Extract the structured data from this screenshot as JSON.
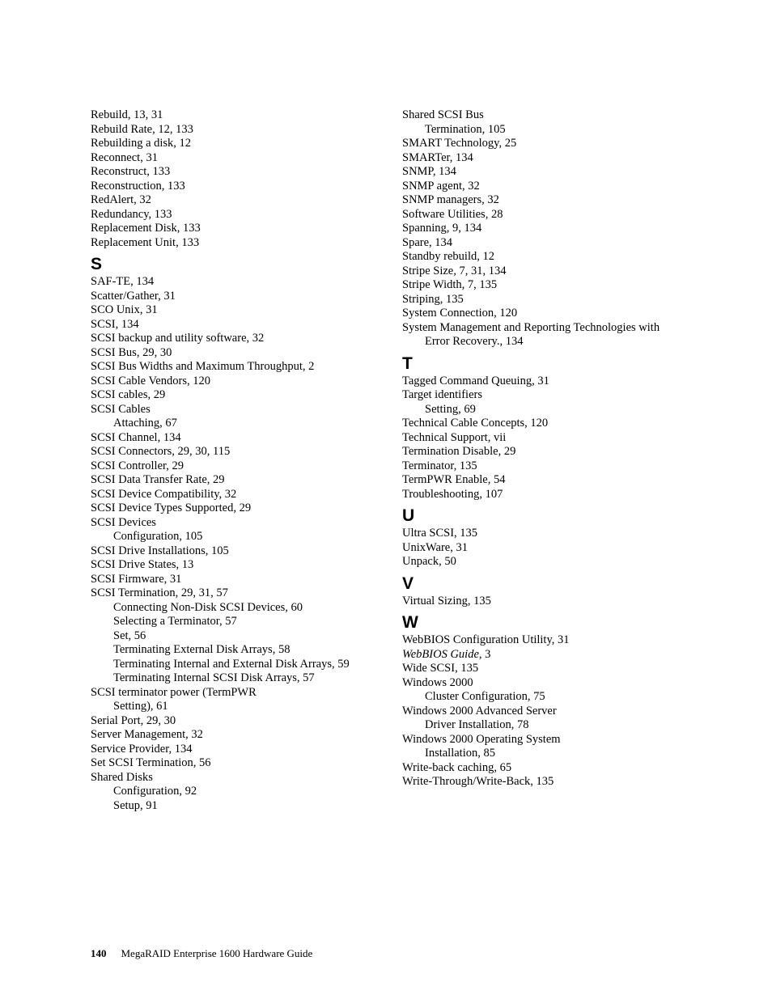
{
  "footer": {
    "pageNumber": "140",
    "title": "MegaRAID Enterprise 1600 Hardware Guide"
  },
  "columns": [
    [
      {
        "t": "entry",
        "text": "Rebuild, 13, 31"
      },
      {
        "t": "entry",
        "text": "Rebuild Rate, 12, 133"
      },
      {
        "t": "entry",
        "text": "Rebuilding a disk, 12"
      },
      {
        "t": "entry",
        "text": "Reconnect, 31"
      },
      {
        "t": "entry",
        "text": "Reconstruct, 133"
      },
      {
        "t": "entry",
        "text": "Reconstruction, 133"
      },
      {
        "t": "entry",
        "text": "RedAlert, 32"
      },
      {
        "t": "entry",
        "text": "Redundancy, 133"
      },
      {
        "t": "entry",
        "text": "Replacement Disk, 133"
      },
      {
        "t": "entry",
        "text": "Replacement Unit, 133"
      },
      {
        "t": "letter",
        "text": "S"
      },
      {
        "t": "entry",
        "text": "SAF-TE, 134"
      },
      {
        "t": "entry",
        "text": "Scatter/Gather, 31"
      },
      {
        "t": "entry",
        "text": "SCO Unix, 31"
      },
      {
        "t": "entry",
        "text": "SCSI, 134"
      },
      {
        "t": "entry",
        "text": "SCSI backup and utility software, 32"
      },
      {
        "t": "entry",
        "text": "SCSI Bus, 29, 30"
      },
      {
        "t": "entry",
        "text": "SCSI Bus Widths and Maximum Throughput, 2"
      },
      {
        "t": "entry",
        "text": "SCSI Cable Vendors, 120"
      },
      {
        "t": "entry",
        "text": "SCSI cables, 29"
      },
      {
        "t": "entry",
        "text": "SCSI Cables"
      },
      {
        "t": "sub",
        "text": "Attaching, 67"
      },
      {
        "t": "entry",
        "text": "SCSI Channel, 134"
      },
      {
        "t": "entry",
        "text": "SCSI Connectors, 29, 30, 115"
      },
      {
        "t": "entry",
        "text": "SCSI Controller, 29"
      },
      {
        "t": "entry",
        "text": "SCSI Data Transfer Rate, 29"
      },
      {
        "t": "entry",
        "text": "SCSI Device Compatibility, 32"
      },
      {
        "t": "entry",
        "text": "SCSI Device Types Supported, 29"
      },
      {
        "t": "entry",
        "text": "SCSI Devices"
      },
      {
        "t": "sub",
        "text": "Configuration, 105"
      },
      {
        "t": "entry",
        "text": "SCSI Drive Installations, 105"
      },
      {
        "t": "entry",
        "text": "SCSI Drive States, 13"
      },
      {
        "t": "entry",
        "text": "SCSI Firmware, 31"
      },
      {
        "t": "entry",
        "text": "SCSI Termination, 29, 31, 57"
      },
      {
        "t": "sub",
        "text": "Connecting Non-Disk SCSI Devices, 60"
      },
      {
        "t": "sub",
        "text": "Selecting a Terminator, 57"
      },
      {
        "t": "sub",
        "text": "Set, 56"
      },
      {
        "t": "sub",
        "text": "Terminating External Disk Arrays, 58"
      },
      {
        "t": "sub",
        "text": "Terminating Internal and External Disk Arrays, 59"
      },
      {
        "t": "sub",
        "text": "Terminating Internal SCSI Disk Arrays, 57"
      },
      {
        "t": "entry",
        "text": "SCSI terminator power (TermPWR"
      },
      {
        "t": "sub",
        "text": "Setting), 61"
      },
      {
        "t": "entry",
        "text": "Serial Port, 29, 30"
      },
      {
        "t": "entry",
        "text": "Server Management, 32"
      },
      {
        "t": "entry",
        "text": "Service Provider, 134"
      },
      {
        "t": "entry",
        "text": "Set SCSI Termination, 56"
      },
      {
        "t": "entry",
        "text": "Shared Disks"
      },
      {
        "t": "sub",
        "text": "Configuration, 92"
      },
      {
        "t": "sub",
        "text": "Setup, 91"
      }
    ],
    [
      {
        "t": "entry",
        "text": "Shared SCSI Bus"
      },
      {
        "t": "sub",
        "text": "Termination, 105"
      },
      {
        "t": "entry",
        "text": "SMART Technology, 25"
      },
      {
        "t": "entry",
        "text": "SMARTer, 134"
      },
      {
        "t": "entry",
        "text": "SNMP, 134"
      },
      {
        "t": "entry",
        "text": "SNMP agent, 32"
      },
      {
        "t": "entry",
        "text": "SNMP managers, 32"
      },
      {
        "t": "entry",
        "text": "Software Utilities, 28"
      },
      {
        "t": "entry",
        "text": "Spanning, 9, 134"
      },
      {
        "t": "entry",
        "text": "Spare, 134"
      },
      {
        "t": "entry",
        "text": "Standby rebuild, 12"
      },
      {
        "t": "entry",
        "text": "Stripe Size, 7, 31, 134"
      },
      {
        "t": "entry",
        "text": "Stripe Width, 7, 135"
      },
      {
        "t": "entry",
        "text": "Striping, 135"
      },
      {
        "t": "entry",
        "text": "System Connection, 120"
      },
      {
        "t": "entry",
        "text": "System Management and Reporting Technologies with"
      },
      {
        "t": "sub",
        "text": "Error Recovery., 134"
      },
      {
        "t": "letter",
        "text": "T"
      },
      {
        "t": "entry",
        "text": "Tagged Command Queuing, 31"
      },
      {
        "t": "entry",
        "text": "Target identifiers"
      },
      {
        "t": "sub",
        "text": "Setting, 69"
      },
      {
        "t": "entry",
        "text": "Technical Cable Concepts, 120"
      },
      {
        "t": "entry",
        "text": "Technical Support, vii"
      },
      {
        "t": "entry",
        "text": "Termination Disable, 29"
      },
      {
        "t": "entry",
        "text": "Terminator, 135"
      },
      {
        "t": "entry",
        "text": "TermPWR Enable, 54"
      },
      {
        "t": "entry",
        "text": "Troubleshooting, 107"
      },
      {
        "t": "letter",
        "text": "U"
      },
      {
        "t": "entry",
        "text": "Ultra SCSI, 135"
      },
      {
        "t": "entry",
        "text": "UnixWare, 31"
      },
      {
        "t": "entry",
        "text": "Unpack, 50"
      },
      {
        "t": "letter",
        "text": "V"
      },
      {
        "t": "entry",
        "text": "Virtual Sizing, 135"
      },
      {
        "t": "letter",
        "text": "W"
      },
      {
        "t": "entry",
        "text": "WebBIOS Configuration Utility, 31"
      },
      {
        "t": "entry",
        "italic": true,
        "text": "WebBIOS Guide",
        "tail": ", 3"
      },
      {
        "t": "entry",
        "text": "Wide SCSI, 135"
      },
      {
        "t": "entry",
        "text": "Windows 2000"
      },
      {
        "t": "sub",
        "text": "Cluster Configuration, 75"
      },
      {
        "t": "entry",
        "text": "Windows 2000 Advanced Server"
      },
      {
        "t": "sub",
        "text": "Driver Installation, 78"
      },
      {
        "t": "entry",
        "text": "Windows 2000 Operating System"
      },
      {
        "t": "sub",
        "text": "Installation, 85"
      },
      {
        "t": "entry",
        "text": "Write-back caching, 65"
      },
      {
        "t": "entry",
        "text": "Write-Through/Write-Back, 135"
      }
    ]
  ]
}
